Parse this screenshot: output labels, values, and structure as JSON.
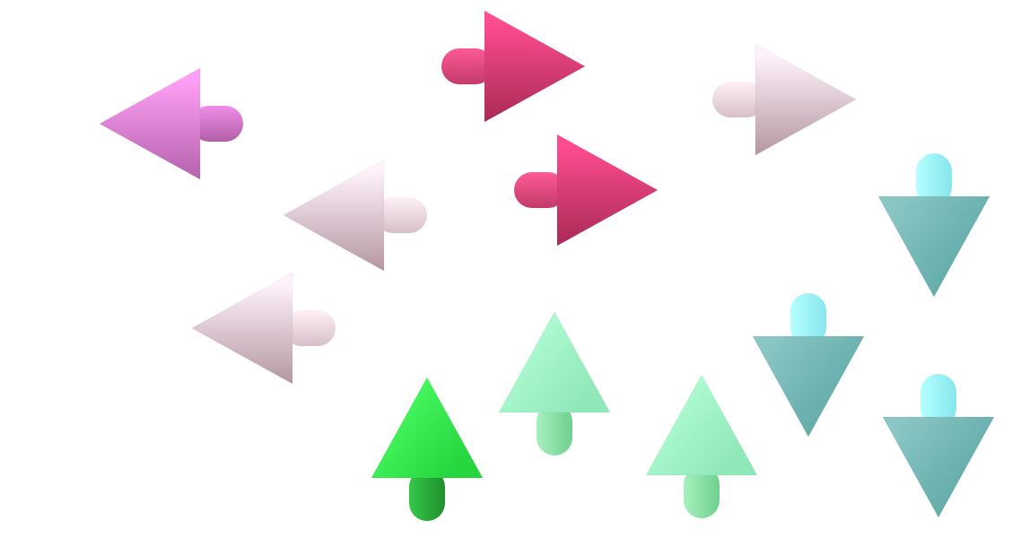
{
  "scene": {
    "background": "#ffffff",
    "arrows": [
      {
        "direction": "left",
        "palette": "magenta"
      },
      {
        "direction": "right",
        "palette": "crimson"
      },
      {
        "direction": "right",
        "palette": "blush"
      },
      {
        "direction": "left",
        "palette": "blush"
      },
      {
        "direction": "right",
        "palette": "crimson"
      },
      {
        "direction": "down",
        "palette": "teal"
      },
      {
        "direction": "left",
        "palette": "blush"
      },
      {
        "direction": "up",
        "palette": "mint"
      },
      {
        "direction": "down",
        "palette": "teal"
      },
      {
        "direction": "up",
        "palette": "green"
      },
      {
        "direction": "up",
        "palette": "mint"
      },
      {
        "direction": "down",
        "palette": "teal"
      }
    ]
  },
  "palettes": {
    "magenta": {
      "head_light": "#ff9ff5",
      "head_dark": "#b562ad",
      "shaft_light": "#f08ce6",
      "shaft_dark": "#b15fa8"
    },
    "crimson": {
      "head_light": "#ff4c90",
      "head_dark": "#a82a55",
      "shaft_light": "#ff5a95",
      "shaft_dark": "#c23a6a"
    },
    "blush": {
      "head_light": "#fff2fa",
      "head_dark": "#b497a3",
      "shaft_light": "#fdf0f6",
      "shaft_dark": "#d8bfca"
    },
    "teal": {
      "head_light": "#8ac6c4",
      "head_dark": "#5da8a6",
      "shaft_light": "#b4ffff",
      "shaft_dark": "#86e6ec"
    },
    "mint": {
      "head_light": "#b6ffd8",
      "head_dark": "#8fe8b8",
      "shaft_light": "#a6f0bf",
      "shaft_dark": "#6fd08f"
    },
    "green": {
      "head_light": "#4dff66",
      "head_dark": "#26d63e",
      "shaft_light": "#36c84a",
      "shaft_dark": "#1f8f2c"
    }
  }
}
